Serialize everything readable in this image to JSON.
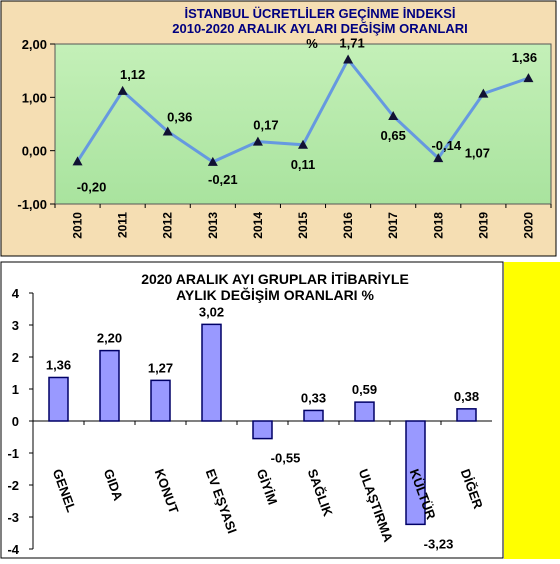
{
  "colors": {
    "frame_bg": "#F5DEB3",
    "plot_bg_top": "#C4F0B8",
    "line": "#6699E0",
    "marker": "#111133",
    "bar_fill": "#9999FF",
    "bar_stroke": "#000066",
    "right_strip": "#FFFF00",
    "title_color": "#000080"
  },
  "chart_data": [
    {
      "type": "line",
      "title": "İSTANBUL ÜCRETLİLER GEÇİNME İNDEKSİ",
      "subtitle": "2010-2020  ARALIK AYLARI  DEĞİŞİM ORANLARI",
      "unit_label": "%",
      "categories": [
        "2010",
        "2011",
        "2012",
        "2013",
        "2014",
        "2015",
        "2016",
        "2017",
        "2018",
        "2019",
        "2020"
      ],
      "values": [
        -0.2,
        1.12,
        0.36,
        -0.21,
        0.17,
        0.11,
        1.71,
        0.65,
        -0.14,
        1.07,
        1.36
      ],
      "value_labels": [
        "-0,20",
        "1,12",
        "0,36",
        "-0,21",
        "0,17",
        "0,11",
        "1,71",
        "0,65",
        "-0,14",
        "1,07",
        "1,36"
      ],
      "y_ticks": [
        -1,
        0,
        1,
        2
      ],
      "y_tick_labels": [
        "-1,00",
        "0,00",
        "1,00",
        "2,00"
      ],
      "ylim": [
        -1,
        2
      ],
      "grid": false,
      "legend": "none"
    },
    {
      "type": "bar",
      "title": "2020  ARALIK AYI  GRUPLAR İTİBARİYLE",
      "subtitle": "AYLIK DEĞİŞİM  ORANLARI  %",
      "categories": [
        "GENEL",
        "GIDA",
        "KONUT",
        "EV EŞYASI",
        "GİYİM",
        "SAĞLIK",
        "ULAŞTIRMA",
        "KÜLTÜR",
        "DİĞER"
      ],
      "values": [
        1.36,
        2.2,
        1.27,
        3.02,
        -0.55,
        0.33,
        0.59,
        -3.23,
        0.38
      ],
      "value_labels": [
        "1,36",
        "2,20",
        "1,27",
        "3,02",
        "-0,55",
        "0,33",
        "0,59",
        "-3,23",
        "0,38"
      ],
      "y_ticks": [
        -4,
        -3,
        -2,
        -1,
        0,
        1,
        2,
        3,
        4
      ],
      "y_tick_labels": [
        "-4",
        "-3",
        "-2",
        "-1",
        "0",
        "1",
        "2",
        "3",
        "4"
      ],
      "ylim": [
        -4,
        4
      ],
      "grid": false,
      "legend": "none"
    }
  ]
}
